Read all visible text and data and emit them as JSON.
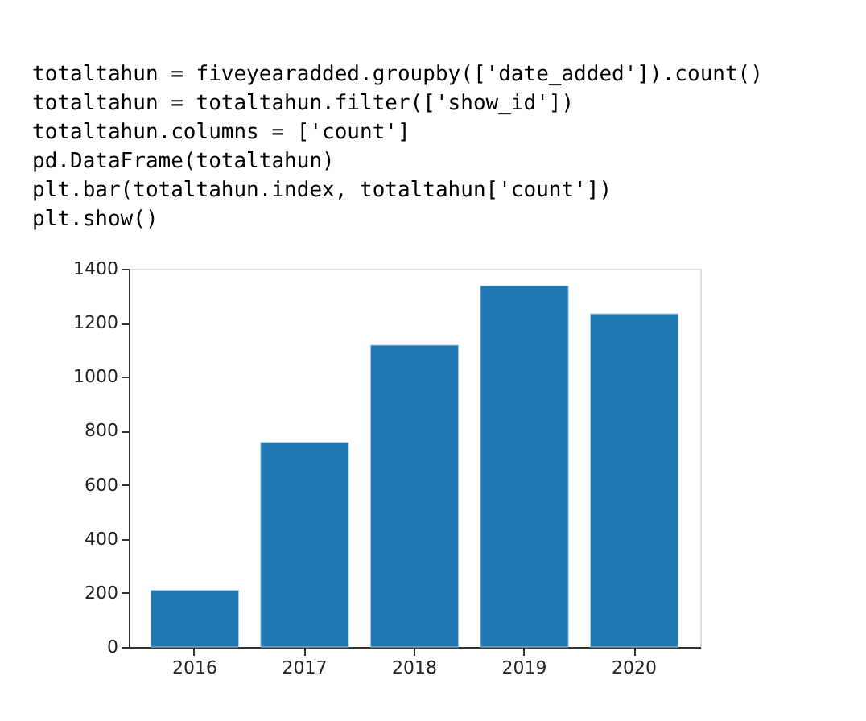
{
  "chart_data": {
    "type": "bar",
    "categories": [
      "2016",
      "2017",
      "2018",
      "2019",
      "2020"
    ],
    "values": [
      210,
      757,
      1117,
      1337,
      1233
    ],
    "color": "#1f77b4",
    "ylim": [
      0,
      1400
    ],
    "yticks": [
      0,
      200,
      400,
      600,
      800,
      1000,
      1200,
      1400
    ],
    "grid": false,
    "annotations": [
      "totaltahun = fiveyearadded.groupby(['date_added']).count()",
      "totaltahun = totaltahun.filter(['show_id'])",
      "totaltahun.columns = ['count']",
      "pd.DataFrame(totaltahun)",
      "plt.bar(totaltahun.index, totaltahun['count'])",
      "plt.show()"
    ]
  }
}
